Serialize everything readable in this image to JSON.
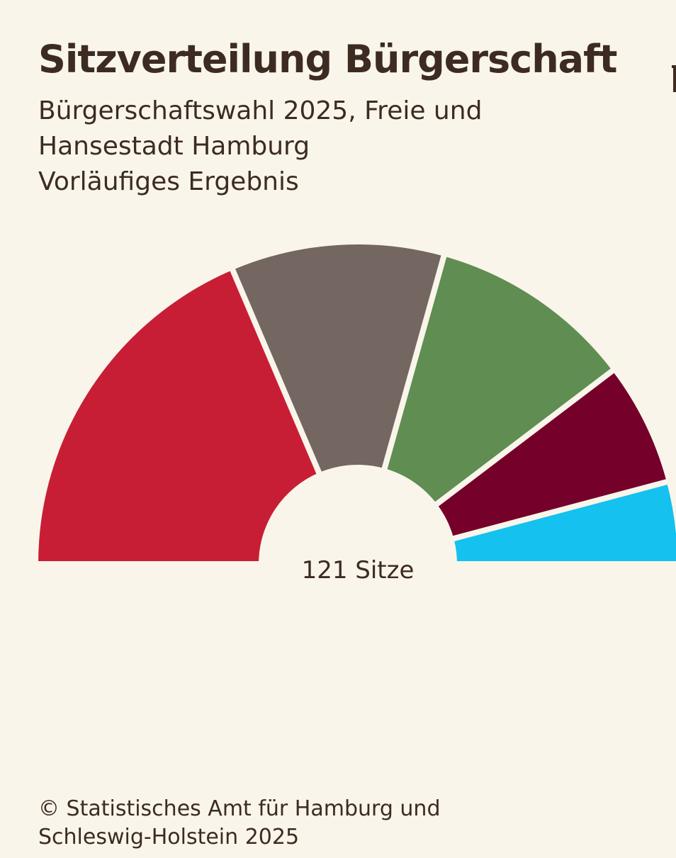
{
  "chart_data": {
    "type": "pie",
    "variant": "parliament-semicircle",
    "title": "Sitzverteilung Bürgerschaft",
    "subtitle_lines": [
      "Bürgerschaftswahl 2025, Freie und",
      "Hansestadt Hamburg",
      "Vorläufiges Ergebnis"
    ],
    "center_label": "121 Sitze",
    "total": 121,
    "series": [
      {
        "color": "#c81e35",
        "value": 45
      },
      {
        "color": "#746661",
        "value": 26
      },
      {
        "color": "#5f8d52",
        "value": 25
      },
      {
        "color": "#750029",
        "value": 15
      },
      {
        "color": "#14c1ef",
        "value": 10
      }
    ]
  },
  "source_lines": [
    "© Statistisches Amt für Hamburg und",
    "Schleswig-Holstein 2025"
  ],
  "colors": {
    "background": "#f9f5eb",
    "text": "#3d2b22"
  }
}
